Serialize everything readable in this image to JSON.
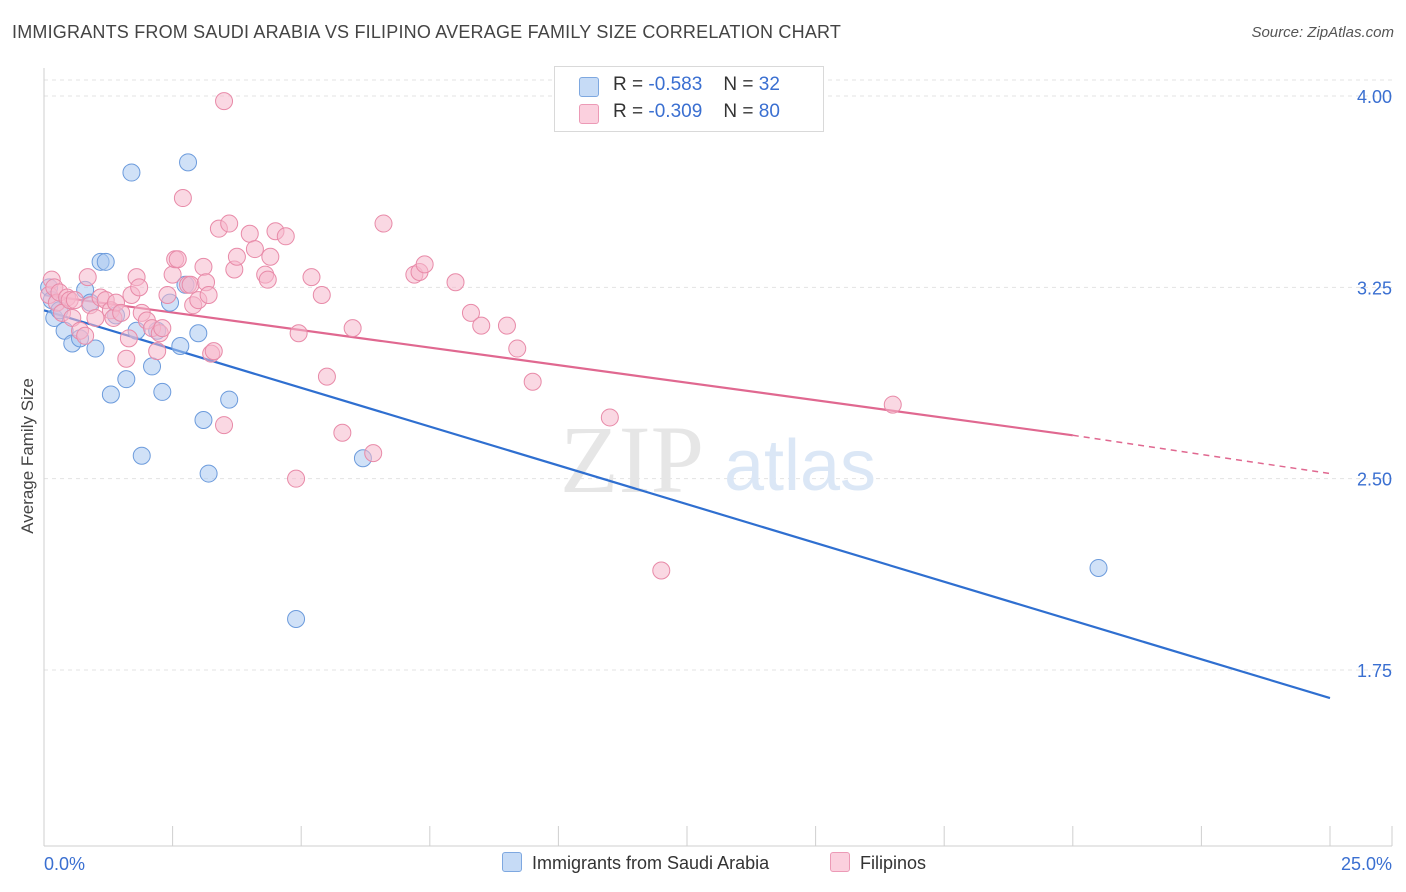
{
  "header": {
    "title": "IMMIGRANTS FROM SAUDI ARABIA VS FILIPINO AVERAGE FAMILY SIZE CORRELATION CHART",
    "source": "Source: ZipAtlas.com"
  },
  "watermark": {
    "zip": "ZIP",
    "atlas": "atlas"
  },
  "legend": {
    "items": [
      {
        "r_label": "R =",
        "r_value": "-0.583",
        "n_label": "N =",
        "n_value": "32",
        "color": "#a9c8f0"
      },
      {
        "r_label": "R =",
        "r_value": "-0.309",
        "n_label": "N =",
        "n_value": "80",
        "color": "#f5b8cc"
      }
    ]
  },
  "chart_data": {
    "type": "scatter",
    "title": "IMMIGRANTS FROM SAUDI ARABIA VS FILIPINO AVERAGE FAMILY SIZE CORRELATION CHART",
    "xlabel": "",
    "ylabel": "Average Family Size",
    "xlim": [
      0,
      25
    ],
    "ylim": [
      1.0,
      4.1
    ],
    "x_tick_labels": [
      "0.0%",
      "25.0%"
    ],
    "y_ticks": [
      1.75,
      2.5,
      3.25,
      4.0
    ],
    "y_tick_labels": [
      "1.75",
      "2.50",
      "3.25",
      "4.00"
    ],
    "grid": true,
    "series": [
      {
        "name": "Immigrants from Saudi Arabia",
        "color": "#a9c8f0",
        "edge": "#6c9bdc",
        "line_color": "#2f6fd0",
        "trend": {
          "x": [
            0.0,
            25.0
          ],
          "y": [
            3.16,
            1.64
          ]
        },
        "points": [
          [
            0.1,
            3.25
          ],
          [
            0.15,
            3.2
          ],
          [
            0.2,
            3.13
          ],
          [
            0.3,
            3.16
          ],
          [
            0.4,
            3.08
          ],
          [
            0.55,
            3.03
          ],
          [
            0.7,
            3.05
          ],
          [
            0.8,
            3.24
          ],
          [
            0.9,
            3.19
          ],
          [
            1.0,
            3.01
          ],
          [
            1.1,
            3.35
          ],
          [
            1.2,
            3.35
          ],
          [
            1.3,
            2.83
          ],
          [
            1.4,
            3.14
          ],
          [
            1.6,
            2.89
          ],
          [
            1.7,
            3.7
          ],
          [
            1.8,
            3.08
          ],
          [
            1.9,
            2.59
          ],
          [
            2.1,
            2.94
          ],
          [
            2.2,
            3.08
          ],
          [
            2.3,
            2.84
          ],
          [
            2.45,
            3.19
          ],
          [
            2.65,
            3.02
          ],
          [
            2.75,
            3.26
          ],
          [
            2.8,
            3.74
          ],
          [
            3.0,
            3.07
          ],
          [
            3.1,
            2.73
          ],
          [
            3.2,
            2.52
          ],
          [
            3.6,
            2.81
          ],
          [
            4.9,
            1.95
          ],
          [
            6.2,
            2.58
          ],
          [
            20.5,
            2.15
          ]
        ]
      },
      {
        "name": "Filipinos",
        "color": "#f5b8cc",
        "edge": "#e88aa8",
        "line_color": "#e06890",
        "trend": {
          "x": [
            0.0,
            20.0
          ],
          "y": [
            3.22,
            2.67
          ]
        },
        "trend_dashed": {
          "x": [
            20.0,
            25.0
          ],
          "y": [
            2.67,
            2.52
          ]
        },
        "points": [
          [
            0.1,
            3.22
          ],
          [
            0.15,
            3.28
          ],
          [
            0.2,
            3.25
          ],
          [
            0.25,
            3.19
          ],
          [
            0.3,
            3.23
          ],
          [
            0.35,
            3.15
          ],
          [
            0.45,
            3.21
          ],
          [
            0.5,
            3.2
          ],
          [
            0.55,
            3.13
          ],
          [
            0.6,
            3.2
          ],
          [
            0.7,
            3.08
          ],
          [
            0.8,
            3.06
          ],
          [
            0.85,
            3.29
          ],
          [
            0.9,
            3.18
          ],
          [
            1.0,
            3.13
          ],
          [
            1.1,
            3.21
          ],
          [
            1.2,
            3.2
          ],
          [
            1.3,
            3.16
          ],
          [
            1.35,
            3.13
          ],
          [
            1.4,
            3.19
          ],
          [
            1.5,
            3.15
          ],
          [
            1.6,
            2.97
          ],
          [
            1.65,
            3.05
          ],
          [
            1.7,
            3.22
          ],
          [
            1.8,
            3.29
          ],
          [
            1.85,
            3.25
          ],
          [
            1.9,
            3.15
          ],
          [
            2.0,
            3.12
          ],
          [
            2.1,
            3.09
          ],
          [
            2.2,
            3.0
          ],
          [
            2.25,
            3.07
          ],
          [
            2.3,
            3.09
          ],
          [
            2.4,
            3.22
          ],
          [
            2.5,
            3.3
          ],
          [
            2.55,
            3.36
          ],
          [
            2.6,
            3.36
          ],
          [
            2.7,
            3.6
          ],
          [
            2.8,
            3.26
          ],
          [
            2.85,
            3.26
          ],
          [
            2.9,
            3.18
          ],
          [
            3.0,
            3.2
          ],
          [
            3.1,
            3.33
          ],
          [
            3.15,
            3.27
          ],
          [
            3.2,
            3.22
          ],
          [
            3.25,
            2.99
          ],
          [
            3.3,
            3.0
          ],
          [
            3.4,
            3.48
          ],
          [
            3.5,
            2.71
          ],
          [
            3.6,
            3.5
          ],
          [
            3.7,
            3.32
          ],
          [
            3.75,
            3.37
          ],
          [
            4.0,
            3.46
          ],
          [
            4.1,
            3.4
          ],
          [
            4.3,
            3.3
          ],
          [
            4.35,
            3.28
          ],
          [
            4.4,
            3.37
          ],
          [
            4.5,
            3.47
          ],
          [
            4.7,
            3.45
          ],
          [
            4.9,
            2.5
          ],
          [
            4.95,
            3.07
          ],
          [
            5.2,
            3.29
          ],
          [
            5.4,
            3.22
          ],
          [
            5.5,
            2.9
          ],
          [
            5.8,
            2.68
          ],
          [
            6.0,
            3.09
          ],
          [
            6.4,
            2.6
          ],
          [
            6.6,
            3.5
          ],
          [
            7.2,
            3.3
          ],
          [
            7.3,
            3.31
          ],
          [
            7.4,
            3.34
          ],
          [
            8.0,
            3.27
          ],
          [
            8.3,
            3.15
          ],
          [
            8.5,
            3.1
          ],
          [
            9.0,
            3.1
          ],
          [
            9.2,
            3.01
          ],
          [
            9.5,
            2.88
          ],
          [
            11.0,
            2.74
          ],
          [
            12.0,
            2.14
          ],
          [
            16.5,
            2.79
          ],
          [
            3.5,
            3.98
          ]
        ]
      }
    ]
  }
}
